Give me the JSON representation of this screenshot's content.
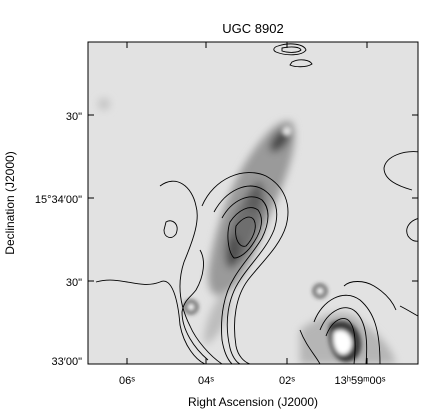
{
  "figure": {
    "title": "UGC 8902",
    "xlabel": "Right Ascension (J2000)",
    "ylabel": "Declination (J2000)",
    "x_ticks": [
      "06ˢ",
      "04ˢ",
      "02ˢ",
      "13ʰ59ᵐ00ˢ"
    ],
    "y_ticks": [
      "30\"",
      "15°34′00\"",
      "30\"",
      "33′00\""
    ]
  }
}
